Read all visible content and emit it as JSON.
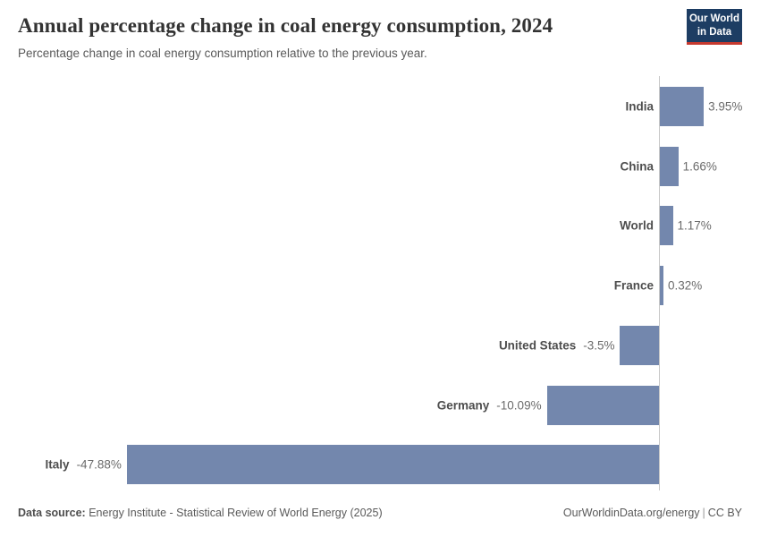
{
  "header": {
    "title": "Annual percentage change in coal energy consumption, 2024",
    "subtitle": "Percentage change in coal energy consumption relative to the previous year.",
    "logo": {
      "line1": "Our World",
      "line2": "in Data",
      "bg_color": "#1d3d63",
      "accent_color": "#c5392f"
    }
  },
  "chart_data": {
    "type": "bar",
    "orientation": "horizontal",
    "title": "Annual percentage change in coal energy consumption, 2024",
    "subtitle": "Percentage change in coal energy consumption relative to the previous year.",
    "categories": [
      "India",
      "China",
      "World",
      "France",
      "United States",
      "Germany",
      "Italy"
    ],
    "values": [
      3.95,
      1.66,
      1.17,
      0.32,
      -3.5,
      -10.09,
      -47.88
    ],
    "value_labels": [
      "3.95%",
      "1.66%",
      "1.17%",
      "0.32%",
      "-3.5%",
      "-10.09%",
      "-47.88%"
    ],
    "value_suffix": "%",
    "xlim": [
      -47.88,
      3.95
    ],
    "bar_color": "#7387ad",
    "axis_color": "#c8c8c8",
    "grid": false,
    "legend": "none",
    "zero_baseline": true
  },
  "footer": {
    "source_label": "Data source:",
    "source_text": "Energy Institute - Statistical Review of World Energy (2025)",
    "url": "OurWorldinData.org/energy",
    "separator": "|",
    "license": "CC BY"
  }
}
